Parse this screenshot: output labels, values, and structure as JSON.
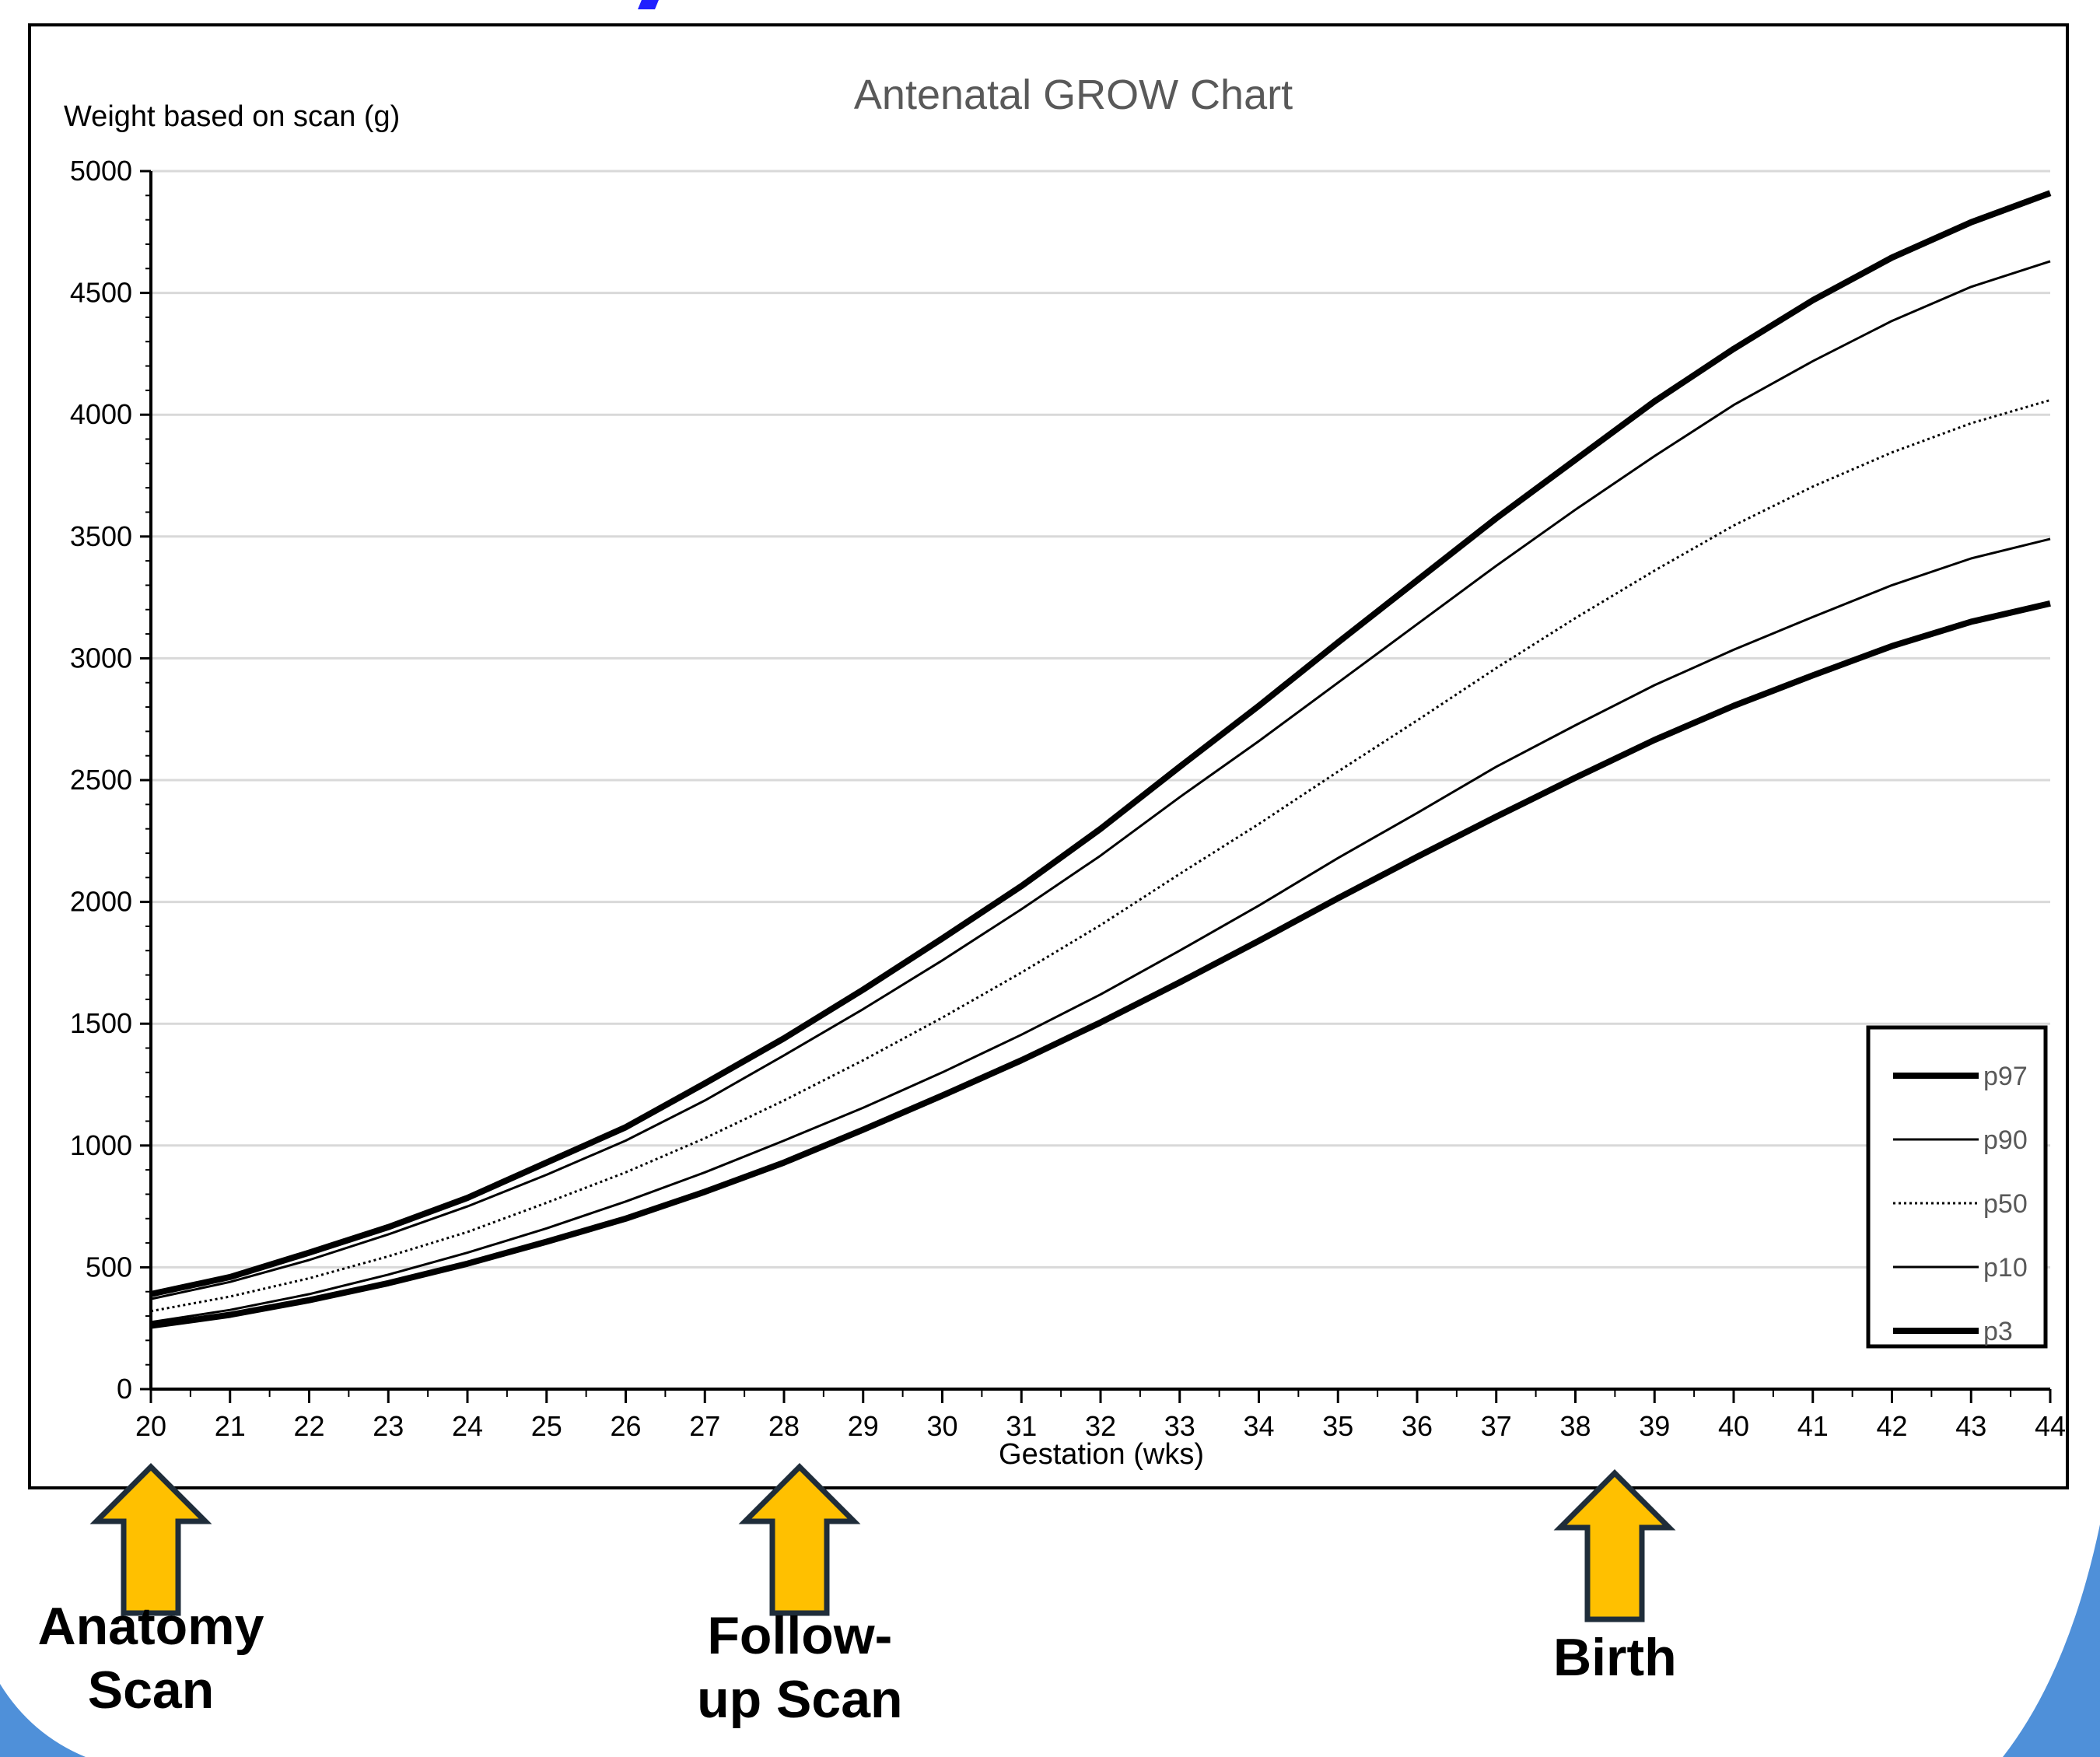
{
  "chart_data": {
    "type": "line",
    "title": "Antenatal GROW Chart",
    "ylabel": "Weight based on scan (g)",
    "xlabel": "Gestation (wks)",
    "xlim": [
      20,
      44
    ],
    "ylim": [
      0,
      5000
    ],
    "x_ticks": [
      20,
      21,
      22,
      23,
      24,
      25,
      26,
      27,
      28,
      29,
      30,
      31,
      32,
      33,
      34,
      35,
      36,
      37,
      38,
      39,
      40,
      41,
      42,
      43,
      44
    ],
    "y_ticks": [
      0,
      500,
      1000,
      1500,
      2000,
      2500,
      3000,
      3500,
      4000,
      4500,
      5000
    ],
    "grid": "horizontal",
    "legend_position": "bottom-right",
    "x": [
      20,
      21,
      22,
      23,
      24,
      25,
      26,
      27,
      28,
      29,
      30,
      31,
      32,
      33,
      34,
      35,
      36,
      37,
      38,
      39,
      40,
      41,
      42,
      43,
      44
    ],
    "series": [
      {
        "name": "p97",
        "style": "thick",
        "values": [
          390,
          460,
          560,
          665,
          785,
          930,
          1075,
          1255,
          1440,
          1640,
          1850,
          2065,
          2300,
          2555,
          2805,
          3065,
          3320,
          3575,
          3815,
          4055,
          4270,
          4470,
          4645,
          4790,
          4910
        ]
      },
      {
        "name": "p90",
        "style": "thin",
        "values": [
          370,
          440,
          530,
          635,
          750,
          880,
          1020,
          1185,
          1370,
          1560,
          1760,
          1970,
          2190,
          2430,
          2660,
          2900,
          3140,
          3380,
          3610,
          3830,
          4040,
          4220,
          4385,
          4525,
          4630
        ]
      },
      {
        "name": "p50",
        "style": "dotted",
        "values": [
          320,
          380,
          455,
          545,
          645,
          765,
          890,
          1030,
          1185,
          1350,
          1525,
          1710,
          1905,
          2115,
          2320,
          2535,
          2745,
          2960,
          3165,
          3360,
          3545,
          3705,
          3845,
          3965,
          4060
        ]
      },
      {
        "name": "p10",
        "style": "thin",
        "values": [
          275,
          325,
          390,
          470,
          560,
          660,
          770,
          890,
          1020,
          1155,
          1300,
          1455,
          1620,
          1800,
          1985,
          2180,
          2365,
          2555,
          2725,
          2890,
          3035,
          3170,
          3300,
          3410,
          3490
        ]
      },
      {
        "name": "p3",
        "style": "thick",
        "values": [
          260,
          305,
          365,
          435,
          515,
          605,
          700,
          810,
          930,
          1065,
          1205,
          1350,
          1505,
          1670,
          1840,
          2015,
          2185,
          2350,
          2510,
          2665,
          2805,
          2930,
          3050,
          3150,
          3225
        ]
      }
    ],
    "colors": {
      "lines": "#000000",
      "grid": "#d9d9d9",
      "title": "#595959",
      "legend_text": "#595959"
    }
  },
  "annotations": [
    {
      "label": "Anatomy\nScan",
      "at_week": 20,
      "arrow_color": "#ffc000"
    },
    {
      "label": "Follow-\nup Scan",
      "at_week": 28.2,
      "arrow_color": "#ffc000"
    },
    {
      "label": "Birth",
      "at_week": 38.5,
      "arrow_color": "#ffc000"
    }
  ],
  "decoration": {
    "corner_color": "#4f90d9",
    "top_title_color": "#1f1fff"
  }
}
